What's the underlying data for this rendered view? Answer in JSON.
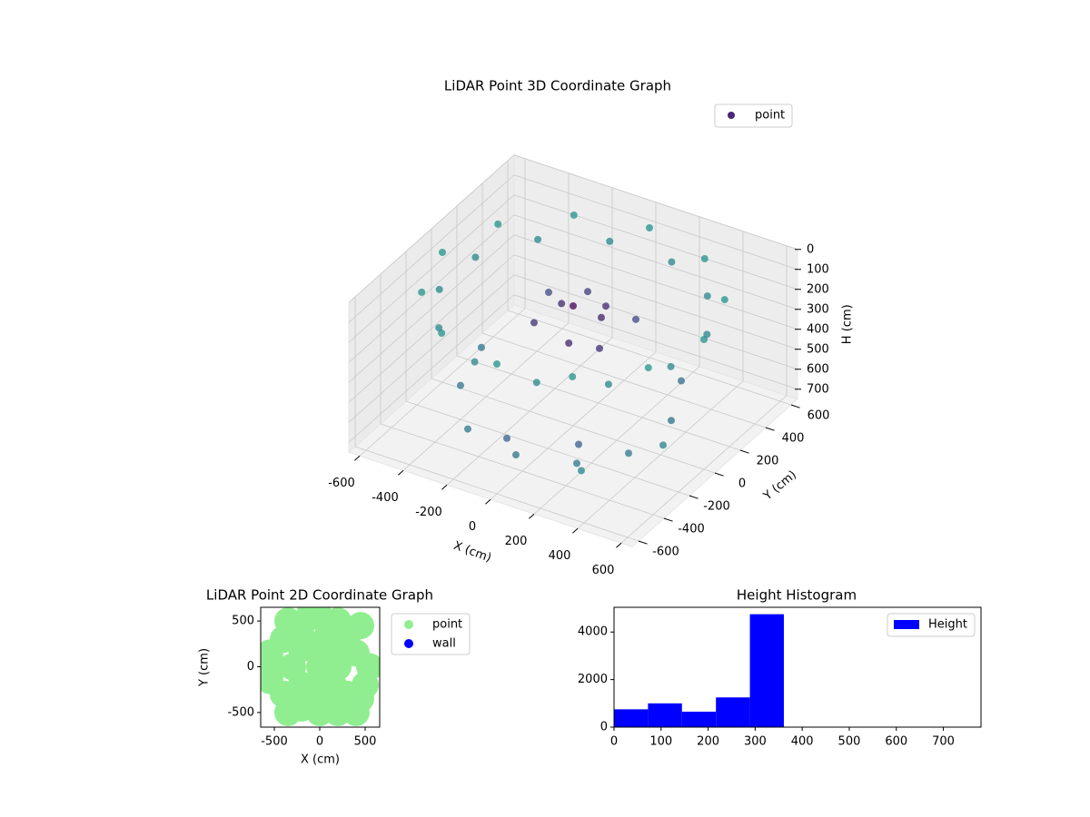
{
  "chart_data": [
    {
      "type": "scatter3d",
      "title": "LiDAR Point 3D Coordinate Graph",
      "xlabel": "X (cm)",
      "ylabel": "Y (cm)",
      "zlabel": "H (cm)",
      "xlim": [
        -650,
        650
      ],
      "ylim": [
        -650,
        650
      ],
      "zlim": [
        0,
        750
      ],
      "z_inverted": true,
      "xticks": [
        -600,
        -400,
        -200,
        0,
        200,
        400,
        600
      ],
      "yticks": [
        -600,
        -400,
        -200,
        0,
        200,
        400,
        600
      ],
      "zticks": [
        0,
        100,
        200,
        300,
        400,
        500,
        600,
        700
      ],
      "grid": true,
      "legend": "upper right",
      "colormap": [
        "#440154",
        "#3b528b",
        "#21918c"
      ],
      "series": [
        {
          "name": "point",
          "color": "#482878",
          "x": [
            600,
            520,
            300,
            0,
            -300,
            -520,
            -600,
            -520,
            -300,
            0,
            300,
            520,
            531,
            389,
            142,
            -142,
            -389,
            -531,
            -531,
            -389,
            -142,
            142,
            389,
            531,
            0,
            100,
            -100,
            50,
            -150,
            200,
            -50,
            150,
            -200,
            80,
            400,
            250,
            0,
            -250,
            -400,
            450,
            350,
            -450,
            200,
            -100,
            500,
            300
          ],
          "y": [
            0,
            300,
            520,
            600,
            520,
            300,
            0,
            -300,
            -520,
            -600,
            -520,
            -300,
            142,
            389,
            531,
            531,
            389,
            142,
            -142,
            -389,
            -531,
            -531,
            -389,
            -142,
            0,
            50,
            80,
            -120,
            -50,
            150,
            200,
            -50,
            150,
            120,
            -250,
            -400,
            -450,
            -400,
            -200,
            0,
            250,
            50,
            -300,
            -350,
            -150,
            -450
          ],
          "z": [
            100,
            100,
            100,
            100,
            100,
            100,
            100,
            100,
            100,
            100,
            100,
            100,
            180,
            180,
            180,
            180,
            180,
            180,
            180,
            180,
            180,
            180,
            180,
            180,
            150,
            200,
            220,
            250,
            260,
            230,
            210,
            280,
            240,
            190,
            600,
            620,
            640,
            630,
            580,
            560,
            540,
            550,
            600,
            650,
            580,
            610
          ]
        }
      ]
    },
    {
      "type": "scatter",
      "title": "LiDAR Point 2D Coordinate Graph",
      "xlabel": "X (cm)",
      "ylabel": "Y (cm)",
      "xlim": [
        -650,
        660
      ],
      "ylim": [
        -660,
        650
      ],
      "xticks": [
        -500,
        0,
        500
      ],
      "yticks": [
        -500,
        0,
        500
      ],
      "legend": "outside right",
      "series": [
        {
          "name": "point",
          "color": "#90ee90",
          "x": [
            0,
            -300,
            -500,
            -400,
            -400,
            -200,
            -200,
            0,
            0,
            200,
            200,
            300,
            300,
            0,
            0,
            -200,
            -200,
            200,
            150,
            150,
            450,
            450,
            550,
            500,
            -550,
            -550,
            100,
            100,
            -100,
            -350,
            -350,
            400,
            400
          ],
          "y": [
            0,
            0,
            0,
            300,
            -300,
            450,
            -450,
            550,
            -500,
            500,
            -500,
            300,
            -300,
            250,
            -250,
            200,
            -200,
            0,
            200,
            -200,
            450,
            -350,
            0,
            -200,
            150,
            -150,
            400,
            -400,
            600,
            500,
            -500,
            -500,
            150
          ]
        },
        {
          "name": "wall",
          "color": "#0000ff",
          "x": [],
          "y": []
        }
      ]
    },
    {
      "type": "histogram",
      "title": "Height Histogram",
      "xlim": [
        0,
        780
      ],
      "ylim": [
        0,
        5040
      ],
      "xticks": [
        0,
        100,
        200,
        300,
        400,
        500,
        600,
        700
      ],
      "yticks": [
        0,
        2000,
        4000
      ],
      "legend": "upper right",
      "series": [
        {
          "name": "Height",
          "color": "#0000ff",
          "bins": [
            0,
            72.2,
            144.4,
            216.6,
            288.8,
            361,
            433.2,
            505.4,
            577.6,
            649.8,
            722
          ],
          "counts": [
            750,
            1000,
            650,
            1250,
            4750,
            0,
            0,
            0,
            0,
            0
          ]
        }
      ]
    }
  ]
}
